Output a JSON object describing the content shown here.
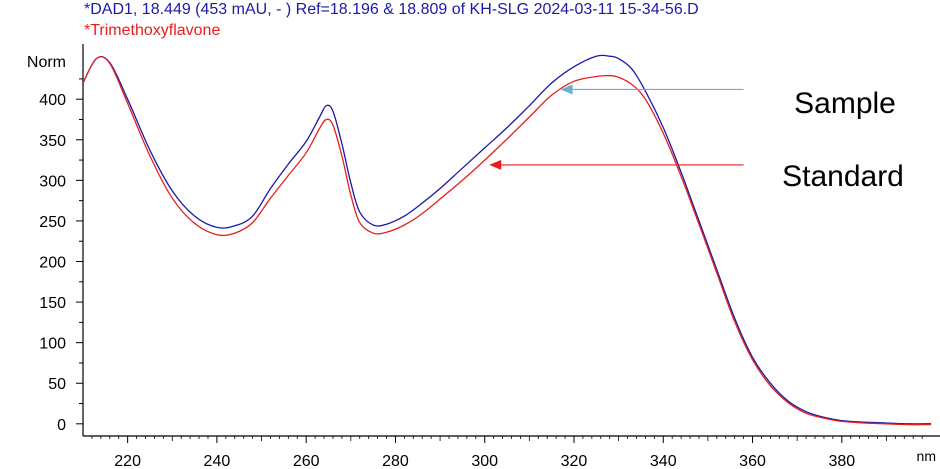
{
  "header": {
    "line1": "*DAD1, 18.449 (453 mAU, - ) Ref=18.196 & 18.809 of KH-SLG 2024-03-11 15-34-56.D",
    "line2": "*Trimethoxyflavone"
  },
  "colors": {
    "sample": "#1a1aa8",
    "standard": "#e81e1e",
    "sample_arrow": "#6aaed6",
    "standard_arrow": "#e81e1e",
    "axis": "#000000",
    "header_line1": "#1a1aa8",
    "header_line2": "#e81e1e"
  },
  "chart_data": {
    "type": "line",
    "ylabel": "Norm",
    "xlabel": "nm",
    "xlim": [
      210,
      402
    ],
    "ylim": [
      -15,
      468
    ],
    "grid": false,
    "x_ticks": [
      220,
      240,
      260,
      280,
      300,
      320,
      340,
      360,
      380
    ],
    "y_ticks": [
      0,
      50,
      100,
      150,
      200,
      250,
      300,
      350,
      400
    ],
    "series": [
      {
        "name": "Sample",
        "x": [
          210,
          213,
          216,
          220,
          225,
          230,
          235,
          240,
          244,
          248,
          252,
          256,
          260,
          263,
          264.5,
          266,
          268,
          270,
          272,
          275,
          278,
          282,
          286,
          290,
          295,
          300,
          305,
          310,
          315,
          320,
          325,
          328,
          330,
          333,
          336,
          340,
          344,
          348,
          352,
          356,
          360,
          364,
          368,
          372,
          376,
          380,
          385,
          390,
          395,
          400
        ],
        "y": [
          420,
          450,
          445,
          400,
          337,
          287,
          256,
          242,
          244,
          256,
          290,
          320,
          348,
          378,
          392,
          385,
          345,
          297,
          261,
          245,
          246,
          256,
          272,
          290,
          315,
          340,
          365,
          392,
          420,
          440,
          453,
          453,
          450,
          437,
          410,
          365,
          310,
          250,
          190,
          130,
          82,
          50,
          28,
          15,
          8,
          4,
          2,
          1,
          0,
          0
        ]
      },
      {
        "name": "Standard",
        "x": [
          210,
          213,
          216,
          220,
          225,
          230,
          235,
          240,
          244,
          248,
          252,
          256,
          260,
          263,
          264.5,
          266,
          268,
          270,
          272,
          275,
          278,
          282,
          286,
          290,
          295,
          300,
          305,
          310,
          315,
          320,
          325,
          328,
          330,
          333,
          336,
          340,
          344,
          348,
          352,
          356,
          360,
          364,
          368,
          372,
          376,
          380,
          385,
          390,
          395,
          400
        ],
        "y": [
          420,
          450,
          444,
          395,
          330,
          278,
          247,
          233,
          235,
          248,
          278,
          306,
          334,
          364,
          375,
          368,
          330,
          282,
          248,
          235,
          236,
          245,
          259,
          277,
          300,
          325,
          351,
          378,
          405,
          422,
          428,
          429,
          427,
          418,
          400,
          358,
          305,
          246,
          186,
          126,
          79,
          47,
          26,
          13,
          7,
          3,
          1,
          0,
          -1,
          -1
        ]
      }
    ],
    "annotations": [
      {
        "text": "Sample",
        "target_series": "Sample",
        "arrow_from_x": 358,
        "arrow_to_x": 317,
        "arrow_y": 412
      },
      {
        "text": "Standard",
        "target_series": "Standard",
        "arrow_from_x": 358,
        "arrow_to_x": 301,
        "arrow_y": 319
      }
    ]
  }
}
